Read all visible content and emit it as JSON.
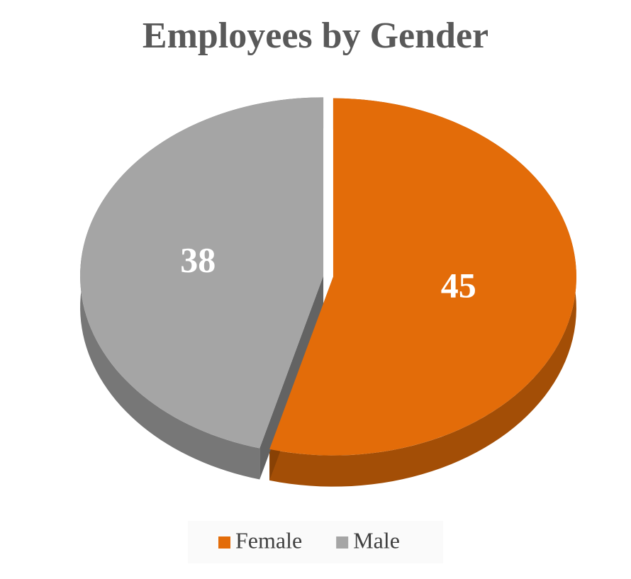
{
  "chart_data": {
    "type": "pie",
    "title": "Employees by Gender",
    "categories": [
      "Female",
      "Male"
    ],
    "values": [
      45,
      38
    ],
    "colors": [
      "#e36c09",
      "#a5a5a5"
    ],
    "legend": "bottom"
  }
}
